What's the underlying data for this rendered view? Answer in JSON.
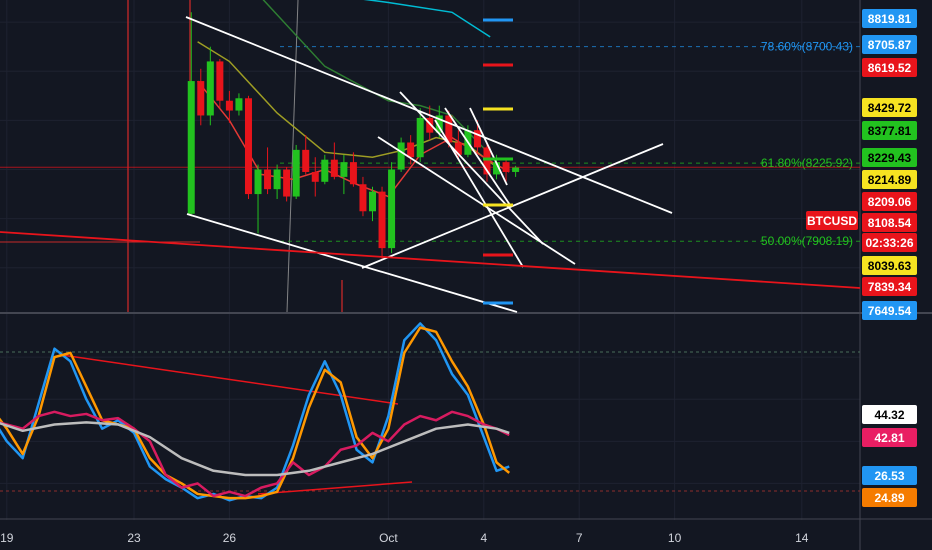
{
  "chart_data": {
    "type": "line",
    "symbol": "BTCUSD",
    "countdown": "02:33:26",
    "x_ticks": [
      {
        "label": "19",
        "day": 19
      },
      {
        "label": "23",
        "day": 23
      },
      {
        "label": "26",
        "day": 26
      },
      {
        "label": "Oct",
        "day": 31
      },
      {
        "label": "4",
        "day": 34
      },
      {
        "label": "7",
        "day": 37
      },
      {
        "label": "10",
        "day": 40
      },
      {
        "label": "14",
        "day": 44
      }
    ],
    "price_ylim": [
      7620,
      8890
    ],
    "price_labels": [
      {
        "text": "8819.81",
        "value": 8819.81,
        "color": "#2196f3"
      },
      {
        "text": "8705.87",
        "value": 8705.87,
        "color": "#2196f3"
      },
      {
        "text": "8619.52",
        "value": 8619.52,
        "color": "#e8141b"
      },
      {
        "text": "8429.72",
        "value": 8429.72,
        "color": "#f6e321"
      },
      {
        "text": "8377.81",
        "value": 8377.81,
        "color": "#22c21f"
      },
      {
        "text": "8229.43",
        "value": 8229.43,
        "color": "#22c21f"
      },
      {
        "text": "8214.89",
        "value": 8214.89,
        "color": "#f6e321"
      },
      {
        "text": "8209.06",
        "value": 8209.06,
        "color": "#e8141b"
      },
      {
        "text": "BTCUSD",
        "value": 8148,
        "color": "#e8141b"
      },
      {
        "text": "8108.54",
        "value": 8108.54,
        "color": "#e8141b"
      },
      {
        "text": "02:33:26",
        "value": 8063,
        "color": "#e8141b"
      },
      {
        "text": "8039.63",
        "value": 8039.63,
        "color": "#f6e321"
      },
      {
        "text": "7839.34",
        "value": 7839.34,
        "color": "#e8141b"
      },
      {
        "text": "7649.54",
        "value": 7649.54,
        "color": "#2196f3"
      }
    ],
    "fib_levels": [
      {
        "text": "78.60%(8700.43)",
        "value": 8700.43,
        "color": "#2196f3"
      },
      {
        "text": "61.80%(8225.92)",
        "value": 8225.92,
        "color": "#22c21f"
      },
      {
        "text": "50.00%(7908.19)",
        "value": 7908.19,
        "color": "#22c21f"
      }
    ],
    "osc_ylim": [
      5,
      100
    ],
    "osc_labels": [
      {
        "text": "44.32",
        "value": 44.32,
        "color": "#ffffff"
      },
      {
        "text": "42.81",
        "value": 42.81,
        "color": "#e91e63"
      },
      {
        "text": "26.53",
        "value": 26.53,
        "color": "#2196f3"
      },
      {
        "text": "24.89",
        "value": 24.89,
        "color": "#f57c00"
      }
    ],
    "candles": [
      {
        "d": 24.8,
        "o": 8020,
        "h": 8840,
        "l": 8010,
        "c": 8560
      },
      {
        "d": 25.1,
        "o": 8560,
        "h": 8610,
        "l": 8380,
        "c": 8420
      },
      {
        "d": 25.4,
        "o": 8420,
        "h": 8700,
        "l": 8380,
        "c": 8640
      },
      {
        "d": 25.7,
        "o": 8640,
        "h": 8650,
        "l": 8450,
        "c": 8480
      },
      {
        "d": 26.0,
        "o": 8480,
        "h": 8520,
        "l": 8390,
        "c": 8440
      },
      {
        "d": 26.3,
        "o": 8440,
        "h": 8510,
        "l": 8420,
        "c": 8490
      },
      {
        "d": 26.6,
        "o": 8490,
        "h": 8500,
        "l": 8080,
        "c": 8100
      },
      {
        "d": 26.9,
        "o": 8100,
        "h": 8220,
        "l": 7940,
        "c": 8200
      },
      {
        "d": 27.2,
        "o": 8200,
        "h": 8290,
        "l": 8100,
        "c": 8120
      },
      {
        "d": 27.5,
        "o": 8120,
        "h": 8220,
        "l": 8080,
        "c": 8200
      },
      {
        "d": 27.8,
        "o": 8200,
        "h": 8210,
        "l": 8070,
        "c": 8090
      },
      {
        "d": 28.1,
        "o": 8090,
        "h": 8300,
        "l": 8080,
        "c": 8280
      },
      {
        "d": 28.4,
        "o": 8280,
        "h": 8340,
        "l": 8180,
        "c": 8190
      },
      {
        "d": 28.7,
        "o": 8190,
        "h": 8250,
        "l": 8090,
        "c": 8150
      },
      {
        "d": 29.0,
        "o": 8150,
        "h": 8260,
        "l": 8140,
        "c": 8240
      },
      {
        "d": 29.3,
        "o": 8240,
        "h": 8310,
        "l": 8160,
        "c": 8170
      },
      {
        "d": 29.6,
        "o": 8170,
        "h": 8260,
        "l": 8100,
        "c": 8230
      },
      {
        "d": 29.9,
        "o": 8230,
        "h": 8270,
        "l": 8130,
        "c": 8140
      },
      {
        "d": 30.2,
        "o": 8140,
        "h": 8170,
        "l": 8010,
        "c": 8030
      },
      {
        "d": 30.5,
        "o": 8030,
        "h": 8130,
        "l": 7990,
        "c": 8110
      },
      {
        "d": 30.8,
        "o": 8110,
        "h": 8130,
        "l": 7830,
        "c": 7880
      },
      {
        "d": 31.1,
        "o": 7880,
        "h": 8230,
        "l": 7860,
        "c": 8200
      },
      {
        "d": 31.4,
        "o": 8200,
        "h": 8330,
        "l": 8190,
        "c": 8310
      },
      {
        "d": 31.7,
        "o": 8310,
        "h": 8340,
        "l": 8220,
        "c": 8250
      },
      {
        "d": 32.0,
        "o": 8250,
        "h": 8450,
        "l": 8230,
        "c": 8410
      },
      {
        "d": 32.3,
        "o": 8410,
        "h": 8460,
        "l": 8320,
        "c": 8350
      },
      {
        "d": 32.6,
        "o": 8350,
        "h": 8460,
        "l": 8330,
        "c": 8420
      },
      {
        "d": 32.9,
        "o": 8420,
        "h": 8440,
        "l": 8290,
        "c": 8310
      },
      {
        "d": 33.2,
        "o": 8310,
        "h": 8360,
        "l": 8240,
        "c": 8260
      },
      {
        "d": 33.5,
        "o": 8260,
        "h": 8380,
        "l": 8250,
        "c": 8360
      },
      {
        "d": 33.8,
        "o": 8360,
        "h": 8400,
        "l": 8270,
        "c": 8290
      },
      {
        "d": 34.1,
        "o": 8290,
        "h": 8310,
        "l": 8150,
        "c": 8180
      },
      {
        "d": 34.4,
        "o": 8180,
        "h": 8260,
        "l": 8160,
        "c": 8230
      },
      {
        "d": 34.7,
        "o": 8230,
        "h": 8240,
        "l": 8150,
        "c": 8190
      },
      {
        "d": 35.0,
        "o": 8190,
        "h": 8215,
        "l": 8170,
        "c": 8208
      }
    ],
    "ema_series": [
      {
        "name": "",
        "color": "#00bcd4",
        "points": [
          [
            28,
            8930
          ],
          [
            31,
            8880
          ],
          [
            33,
            8840
          ],
          [
            34.2,
            8740
          ]
        ]
      },
      {
        "name": "",
        "color": "#2e7d32",
        "points": [
          [
            27,
            8900
          ],
          [
            29,
            8620
          ],
          [
            31,
            8480
          ],
          [
            32,
            8460
          ],
          [
            33,
            8420
          ],
          [
            34.2,
            8260
          ]
        ]
      },
      {
        "name": "",
        "color": "#9e9d24",
        "points": [
          [
            25,
            8720
          ],
          [
            26,
            8640
          ],
          [
            27.5,
            8430
          ],
          [
            29,
            8270
          ],
          [
            30.5,
            8250
          ],
          [
            31.5,
            8280
          ],
          [
            32.5,
            8330
          ],
          [
            33.5,
            8300
          ],
          [
            34.3,
            8220
          ]
        ]
      },
      {
        "name": "",
        "color": "#e53935",
        "points": [
          [
            25,
            8560
          ],
          [
            26,
            8400
          ],
          [
            27,
            8180
          ],
          [
            28,
            8160
          ],
          [
            29,
            8200
          ],
          [
            30,
            8140
          ],
          [
            31,
            8090
          ],
          [
            32,
            8260
          ],
          [
            33,
            8330
          ],
          [
            34,
            8250
          ],
          [
            34.8,
            8190
          ]
        ]
      }
    ],
    "osc_series": [
      {
        "name": "",
        "color": "#2196f3",
        "points": [
          [
            18.5,
            52
          ],
          [
            19,
            40
          ],
          [
            19.5,
            32
          ],
          [
            20,
            58
          ],
          [
            20.5,
            84
          ],
          [
            21,
            78
          ],
          [
            21.5,
            60
          ],
          [
            22,
            46
          ],
          [
            22.5,
            50
          ],
          [
            23,
            44
          ],
          [
            23.5,
            28
          ],
          [
            24,
            22
          ],
          [
            24.5,
            18
          ],
          [
            25,
            13
          ],
          [
            25.5,
            15
          ],
          [
            26,
            12
          ],
          [
            26.5,
            14
          ],
          [
            27,
            13
          ],
          [
            27.5,
            18
          ],
          [
            28,
            38
          ],
          [
            28.5,
            62
          ],
          [
            29,
            78
          ],
          [
            29.5,
            62
          ],
          [
            30,
            36
          ],
          [
            30.5,
            30
          ],
          [
            31,
            52
          ],
          [
            31.5,
            88
          ],
          [
            32,
            96
          ],
          [
            32.5,
            88
          ],
          [
            33,
            72
          ],
          [
            33.5,
            62
          ],
          [
            34,
            42
          ],
          [
            34.4,
            26
          ],
          [
            34.8,
            28
          ]
        ]
      },
      {
        "name": "",
        "color": "#ff9800",
        "points": [
          [
            18.5,
            56
          ],
          [
            19,
            46
          ],
          [
            19.5,
            34
          ],
          [
            20,
            52
          ],
          [
            20.5,
            80
          ],
          [
            21,
            82
          ],
          [
            21.5,
            66
          ],
          [
            22,
            50
          ],
          [
            22.5,
            48
          ],
          [
            23,
            46
          ],
          [
            23.5,
            32
          ],
          [
            24,
            24
          ],
          [
            24.5,
            20
          ],
          [
            25,
            15
          ],
          [
            25.5,
            14
          ],
          [
            26,
            13
          ],
          [
            26.5,
            13
          ],
          [
            27,
            14
          ],
          [
            27.5,
            16
          ],
          [
            28,
            32
          ],
          [
            28.5,
            56
          ],
          [
            29,
            74
          ],
          [
            29.5,
            68
          ],
          [
            30,
            42
          ],
          [
            30.5,
            32
          ],
          [
            31,
            46
          ],
          [
            31.5,
            82
          ],
          [
            32,
            94
          ],
          [
            32.5,
            92
          ],
          [
            33,
            78
          ],
          [
            33.5,
            66
          ],
          [
            34,
            48
          ],
          [
            34.4,
            30
          ],
          [
            34.8,
            25
          ]
        ]
      },
      {
        "name": "",
        "color": "#d81b60",
        "points": [
          [
            18.5,
            50
          ],
          [
            19,
            48
          ],
          [
            19.5,
            46
          ],
          [
            20,
            52
          ],
          [
            20.5,
            54
          ],
          [
            21,
            52
          ],
          [
            21.5,
            53
          ],
          [
            22,
            50
          ],
          [
            22.5,
            51
          ],
          [
            23,
            46
          ],
          [
            23.5,
            40
          ],
          [
            24,
            24
          ],
          [
            24.5,
            18
          ],
          [
            25,
            20
          ],
          [
            25.5,
            14
          ],
          [
            26,
            16
          ],
          [
            26.5,
            14
          ],
          [
            27,
            18
          ],
          [
            27.5,
            20
          ],
          [
            28,
            30
          ],
          [
            28.5,
            24
          ],
          [
            29,
            28
          ],
          [
            29.5,
            36
          ],
          [
            30,
            38
          ],
          [
            30.5,
            44
          ],
          [
            31,
            40
          ],
          [
            31.5,
            48
          ],
          [
            32,
            52
          ],
          [
            32.5,
            50
          ],
          [
            33,
            54
          ],
          [
            33.5,
            52
          ],
          [
            34,
            48
          ],
          [
            34.4,
            46
          ],
          [
            34.8,
            43
          ]
        ]
      },
      {
        "name": "",
        "color": "#bdbdbd",
        "points": [
          [
            18.5,
            50
          ],
          [
            19.5,
            45
          ],
          [
            20.5,
            48
          ],
          [
            21.5,
            49
          ],
          [
            22.5,
            48
          ],
          [
            23.5,
            42
          ],
          [
            24.5,
            32
          ],
          [
            25.5,
            26
          ],
          [
            26.5,
            24
          ],
          [
            27.5,
            24
          ],
          [
            28.5,
            26
          ],
          [
            29.5,
            30
          ],
          [
            30.5,
            34
          ],
          [
            31.5,
            40
          ],
          [
            32.5,
            46
          ],
          [
            33.5,
            48
          ],
          [
            34.4,
            46
          ],
          [
            34.8,
            44
          ]
        ]
      }
    ]
  }
}
